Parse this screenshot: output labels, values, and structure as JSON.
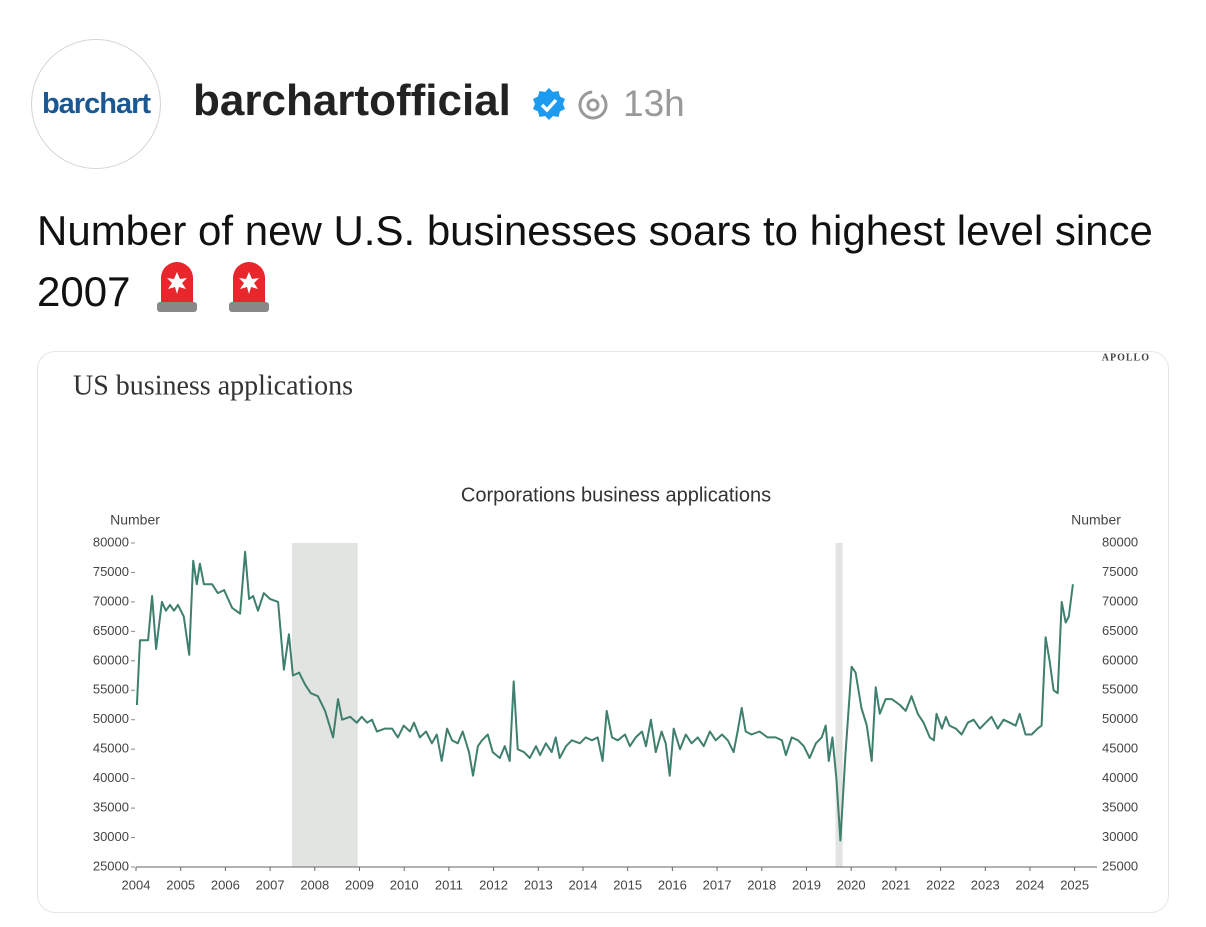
{
  "post": {
    "avatar_text": "barchart",
    "username": "barchartofficial",
    "time": "13h",
    "text": "Number of new U.S. businesses soars to highest level since 2007"
  },
  "chart_data": {
    "type": "line",
    "source": "APOLLO",
    "title": "US business applications",
    "subtitle": "Corporations business applications",
    "ylabel": "Number",
    "y2label": "Number",
    "color": "#3f7f6e",
    "shade_color": "#e2e4e2",
    "xlim": [
      2004,
      2025.5
    ],
    "xticks": [
      2004,
      2005,
      2006,
      2007,
      2008,
      2009,
      2010,
      2011,
      2012,
      2013,
      2014,
      2015,
      2016,
      2017,
      2018,
      2019,
      2020,
      2021,
      2022,
      2023,
      2024,
      2025
    ],
    "ylim": [
      25000,
      80000
    ],
    "yticks": [
      25000,
      30000,
      35000,
      40000,
      45000,
      50000,
      55000,
      60000,
      65000,
      70000,
      75000,
      80000
    ],
    "y2lim": [
      25000,
      80000
    ],
    "y2ticks": [
      25000,
      30000,
      35000,
      40000,
      45000,
      50000,
      55000,
      60000,
      65000,
      70000,
      75000,
      80000
    ],
    "shaded_ranges": [
      [
        2007.49,
        2008.96
      ],
      [
        2019.65,
        2019.81
      ]
    ],
    "x": [
      2004.02,
      2004.09,
      2004.27,
      2004.36,
      2004.45,
      2004.58,
      2004.67,
      2004.76,
      2004.85,
      2004.94,
      2005.07,
      2005.19,
      2005.28,
      2005.36,
      2005.43,
      2005.52,
      2005.7,
      2005.83,
      2005.97,
      2006.15,
      2006.33,
      2006.44,
      2006.53,
      2006.62,
      2006.73,
      2006.86,
      2007.0,
      2007.18,
      2007.31,
      2007.42,
      2007.51,
      2007.65,
      2007.78,
      2007.91,
      2008.07,
      2008.23,
      2008.41,
      2008.52,
      2008.61,
      2008.79,
      2008.94,
      2009.05,
      2009.17,
      2009.28,
      2009.39,
      2009.57,
      2009.73,
      2009.86,
      2009.99,
      2010.13,
      2010.22,
      2010.35,
      2010.49,
      2010.62,
      2010.73,
      2010.84,
      2010.96,
      2011.07,
      2011.2,
      2011.31,
      2011.45,
      2011.54,
      2011.65,
      2011.74,
      2011.87,
      2011.98,
      2012.14,
      2012.25,
      2012.36,
      2012.45,
      2012.54,
      2012.68,
      2012.81,
      2012.95,
      2013.04,
      2013.17,
      2013.3,
      2013.39,
      2013.48,
      2013.62,
      2013.75,
      2013.93,
      2014.06,
      2014.2,
      2014.33,
      2014.44,
      2014.53,
      2014.65,
      2014.78,
      2014.94,
      2015.05,
      2015.18,
      2015.32,
      2015.41,
      2015.52,
      2015.63,
      2015.76,
      2015.85,
      2015.94,
      2016.03,
      2016.17,
      2016.3,
      2016.43,
      2016.57,
      2016.7,
      2016.84,
      2016.97,
      2017.11,
      2017.24,
      2017.37,
      2017.46,
      2017.55,
      2017.64,
      2017.77,
      2017.95,
      2018.13,
      2018.31,
      2018.45,
      2018.54,
      2018.67,
      2018.81,
      2018.94,
      2019.07,
      2019.21,
      2019.34,
      2019.43,
      2019.5,
      2019.58,
      2019.67,
      2019.76,
      2019.87,
      2020.01,
      2020.1,
      2020.23,
      2020.35,
      2020.46,
      2020.55,
      2020.64,
      2020.77,
      2020.91,
      2021.09,
      2021.22,
      2021.35,
      2021.49,
      2021.62,
      2021.76,
      2021.85,
      2021.91,
      2022.03,
      2022.12,
      2022.2,
      2022.34,
      2022.47,
      2022.61,
      2022.74,
      2022.88,
      2023.01,
      2023.14,
      2023.28,
      2023.41,
      2023.55,
      2023.68,
      2023.77,
      2023.9,
      2024.04,
      2024.17,
      2024.26,
      2024.35,
      2024.44,
      2024.53,
      2024.62,
      2024.71,
      2024.8,
      2024.87,
      2024.96
    ],
    "values": [
      52500,
      63500,
      63500,
      71000,
      62000,
      70000,
      68500,
      69500,
      68500,
      69500,
      67500,
      61000,
      77000,
      73000,
      76500,
      73000,
      73000,
      71500,
      72000,
      69000,
      68000,
      78500,
      70500,
      71000,
      68500,
      71500,
      70500,
      70000,
      58500,
      64500,
      57500,
      58000,
      56000,
      54500,
      54000,
      51500,
      47000,
      53500,
      50000,
      50500,
      49500,
      50500,
      49500,
      50000,
      48000,
      48500,
      48500,
      47000,
      49000,
      48000,
      49500,
      47000,
      48000,
      46000,
      47500,
      43000,
      48500,
      46500,
      46000,
      48000,
      44500,
      40500,
      45500,
      46500,
      47500,
      44500,
      43500,
      45500,
      43000,
      56500,
      45000,
      44500,
      43500,
      45500,
      44000,
      46000,
      44500,
      47000,
      43500,
      45500,
      46500,
      46000,
      47000,
      46500,
      47000,
      43000,
      51500,
      47000,
      46500,
      47500,
      45500,
      47000,
      48000,
      45500,
      50000,
      44500,
      48000,
      46000,
      40500,
      48500,
      45000,
      47500,
      46000,
      47000,
      45500,
      48000,
      46500,
      47500,
      46500,
      44500,
      48000,
      52000,
      48000,
      47500,
      48000,
      47000,
      47000,
      46500,
      44000,
      47000,
      46500,
      45500,
      43500,
      46000,
      47000,
      49000,
      43000,
      47000,
      40000,
      29500,
      44000,
      59000,
      58000,
      52000,
      49000,
      43000,
      55500,
      51000,
      53500,
      53500,
      52500,
      51500,
      54000,
      51000,
      49500,
      47000,
      46500,
      51000,
      48500,
      50500,
      49000,
      48500,
      47500,
      49500,
      50000,
      48500,
      49500,
      50500,
      48500,
      50000,
      49500,
      49000,
      51000,
      47500,
      47500,
      48500,
      49000,
      64000,
      60000,
      55000,
      54500,
      70000,
      66500,
      67500,
      73000
    ]
  }
}
